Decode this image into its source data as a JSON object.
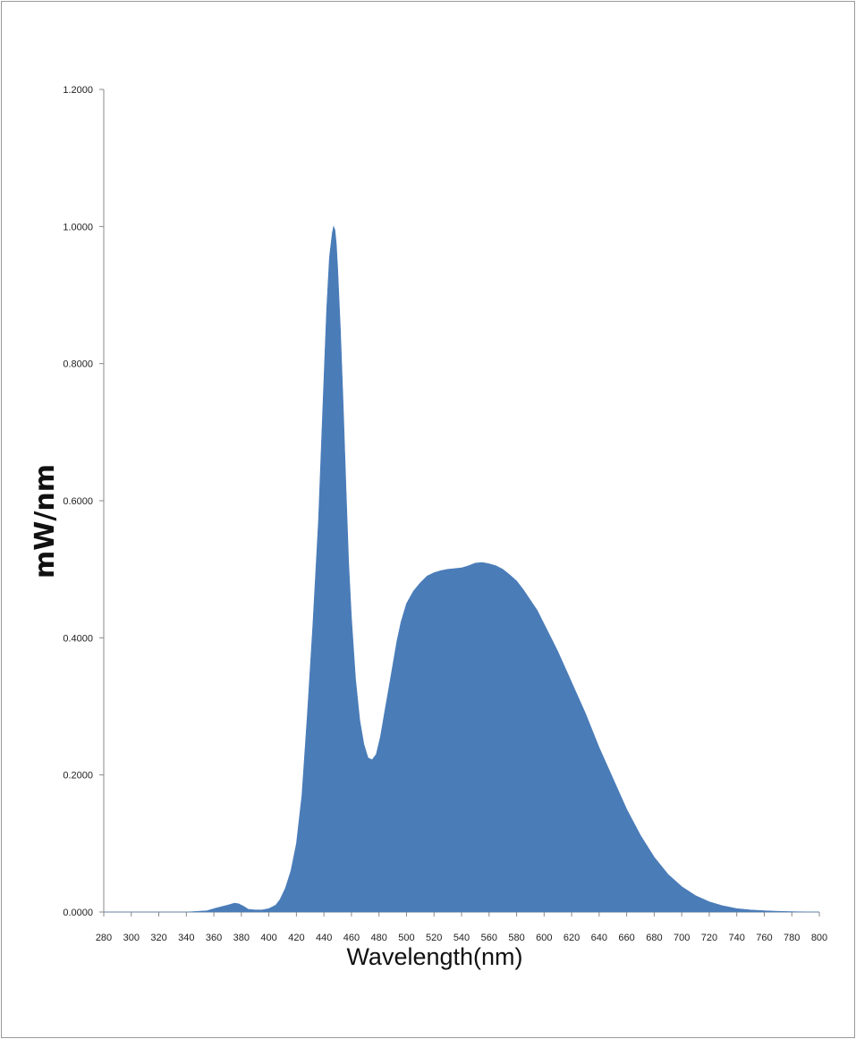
{
  "chart_data": {
    "type": "area",
    "title": "",
    "xlabel": "Wavelength(nm)",
    "ylabel": "mW/nm",
    "xlim": [
      280,
      800
    ],
    "ylim": [
      0,
      1.2
    ],
    "x_ticks": [
      "280",
      "300",
      "320",
      "340",
      "360",
      "380",
      "400",
      "420",
      "440",
      "460",
      "480",
      "500",
      "520",
      "540",
      "560",
      "580",
      "600",
      "620",
      "640",
      "660",
      "680",
      "700",
      "720",
      "740",
      "760",
      "780",
      "800"
    ],
    "y_ticks": [
      "0.0000",
      "0.2000",
      "0.4000",
      "0.6000",
      "0.8000",
      "1.0000",
      "1.2000"
    ],
    "grid": false,
    "legend": "none",
    "fill_color": "#4a7cb8",
    "series": [
      {
        "x": [
          280,
          340,
          355,
          362,
          370,
          375,
          378,
          382,
          385,
          390,
          395,
          400,
          405,
          408,
          412,
          416,
          420,
          424,
          428,
          432,
          436,
          440,
          442,
          444,
          446,
          447,
          448,
          449,
          450,
          452,
          454,
          456,
          458,
          460,
          463,
          466,
          469,
          472,
          475,
          478,
          481,
          484,
          487,
          490,
          493,
          496,
          500,
          505,
          510,
          515,
          520,
          525,
          530,
          535,
          540,
          545,
          550,
          555,
          560,
          565,
          570,
          575,
          580,
          585,
          590,
          595,
          600,
          605,
          610,
          620,
          630,
          640,
          650,
          660,
          670,
          680,
          690,
          700,
          710,
          720,
          730,
          740,
          750,
          760,
          770,
          780,
          790,
          800
        ],
        "y": [
          0,
          0,
          0.002,
          0.006,
          0.01,
          0.013,
          0.012,
          0.008,
          0.004,
          0.003,
          0.003,
          0.005,
          0.01,
          0.018,
          0.035,
          0.06,
          0.1,
          0.17,
          0.29,
          0.42,
          0.57,
          0.78,
          0.88,
          0.955,
          0.99,
          1.0,
          0.995,
          0.975,
          0.94,
          0.85,
          0.74,
          0.62,
          0.51,
          0.43,
          0.34,
          0.28,
          0.245,
          0.225,
          0.222,
          0.23,
          0.255,
          0.29,
          0.325,
          0.36,
          0.395,
          0.423,
          0.45,
          0.468,
          0.48,
          0.49,
          0.495,
          0.498,
          0.5,
          0.501,
          0.502,
          0.505,
          0.509,
          0.51,
          0.508,
          0.505,
          0.5,
          0.492,
          0.483,
          0.47,
          0.455,
          0.44,
          0.42,
          0.4,
          0.38,
          0.335,
          0.29,
          0.24,
          0.195,
          0.15,
          0.112,
          0.08,
          0.055,
          0.037,
          0.024,
          0.015,
          0.009,
          0.005,
          0.003,
          0.002,
          0.001,
          0.0005,
          0.0002,
          0
        ]
      }
    ]
  }
}
